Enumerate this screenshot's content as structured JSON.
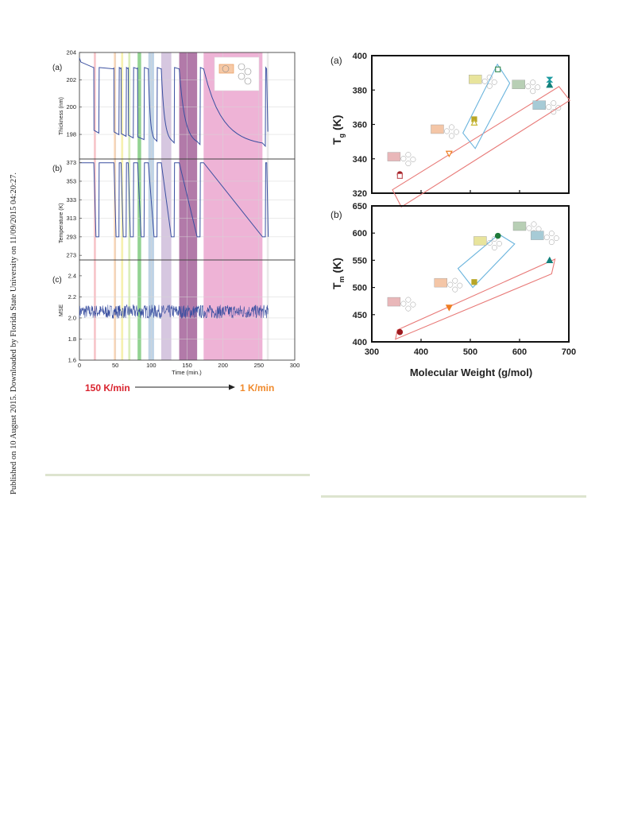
{
  "sidebar_note": "Published on 10 August 2015. Downloaded by Florida State University on 11/09/2015 04:20:27.",
  "left_figure": {
    "panel_a": {
      "label": "(a)",
      "ylabel": "Thickness (nm)",
      "yticks": [
        "204",
        "202",
        "200",
        "198"
      ]
    },
    "panel_b": {
      "label": "(b)",
      "ylabel": "Temperature (K)",
      "yticks": [
        "373",
        "353",
        "333",
        "313",
        "293",
        "273"
      ]
    },
    "panel_c": {
      "label": "(c)",
      "ylabel": "MSE",
      "yticks": [
        "2.4",
        "2.2",
        "2.0",
        "1.8",
        "1.6"
      ]
    },
    "xlabel": "Time (min.)",
    "xticks": [
      "0",
      "50",
      "100",
      "150",
      "200",
      "250",
      "300"
    ],
    "rate_start": "150 K/min",
    "rate_end": "1 K/min",
    "colors": {
      "line": "#3a4fa0",
      "rate_start": "#d9232e",
      "rate_end": "#f08a2c",
      "bands": [
        "#f4b3b8",
        "#f9c79a",
        "#f3ec96",
        "#cde8a3",
        "#6fc46f",
        "#a9c4de",
        "#c8b4d6",
        "#a4639a",
        "#e89ac8"
      ]
    }
  },
  "chart_data": [
    {
      "type": "scatter",
      "title": "",
      "panel": "(a)",
      "xlabel": "Molecular Weight (g/mol)",
      "ylabel": "Tg (K)",
      "xlim": [
        300,
        700
      ],
      "ylim": [
        320,
        400
      ],
      "xticks": [
        "300",
        "400",
        "500",
        "600",
        "700"
      ],
      "yticks": [
        "320",
        "340",
        "360",
        "380",
        "400"
      ],
      "series": [
        {
          "points": [
            {
              "x": 357,
              "y": 331,
              "marker": "circle",
              "color": "#9e1b20"
            },
            {
              "x": 357,
              "y": 330,
              "marker": "square-open",
              "color": "#c45a60"
            }
          ]
        },
        {
          "points": [
            {
              "x": 457,
              "y": 343,
              "marker": "triangle-down-open",
              "color": "#ef7d22"
            }
          ]
        },
        {
          "points": [
            {
              "x": 508,
              "y": 363,
              "marker": "square",
              "color": "#b8a627"
            },
            {
              "x": 508,
              "y": 361,
              "marker": "triangle-open",
              "color": "#c9b93a"
            }
          ]
        },
        {
          "points": [
            {
              "x": 556,
              "y": 392,
              "marker": "square-open",
              "color": "#3a8f5a"
            }
          ]
        },
        {
          "points": [
            {
              "x": 661,
              "y": 383,
              "marker": "triangle",
              "color": "#12807a"
            },
            {
              "x": 661,
              "y": 386,
              "marker": "hourglass",
              "color": "#1c9aa0"
            }
          ]
        }
      ]
    },
    {
      "type": "scatter",
      "title": "",
      "panel": "(b)",
      "xlabel": "Molecular Weight (g/mol)",
      "ylabel": "Tm (K)",
      "xlim": [
        300,
        700
      ],
      "ylim": [
        400,
        650
      ],
      "xticks": [
        "300",
        "400",
        "500",
        "600",
        "700"
      ],
      "yticks": [
        "400",
        "450",
        "500",
        "550",
        "600",
        "650"
      ],
      "series": [
        {
          "points": [
            {
              "x": 357,
              "y": 418,
              "marker": "circle",
              "color": "#9e1b20"
            }
          ]
        },
        {
          "points": [
            {
              "x": 457,
              "y": 463,
              "marker": "triangle-down",
              "color": "#ef7d22"
            }
          ]
        },
        {
          "points": [
            {
              "x": 508,
              "y": 510,
              "marker": "square",
              "color": "#b8a627"
            }
          ]
        },
        {
          "points": [
            {
              "x": 556,
              "y": 595,
              "marker": "circle",
              "color": "#1f7a3a"
            }
          ]
        },
        {
          "points": [
            {
              "x": 661,
              "y": 550,
              "marker": "triangle",
              "color": "#12807a"
            }
          ]
        }
      ]
    }
  ],
  "right_figure": {
    "panel_a_label": "(a)",
    "panel_b_label": "(b)",
    "ylabel_a_main": "T",
    "ylabel_a_sub": "g",
    "ylabel_a_unit": " (K)",
    "ylabel_b_main": "T",
    "ylabel_b_sub": "m",
    "ylabel_b_unit": " (K)",
    "xlabel": "Molecular Weight (g/mol)",
    "colors": {
      "box_red": "#e87a78",
      "box_blue": "#6ab4dd"
    }
  }
}
